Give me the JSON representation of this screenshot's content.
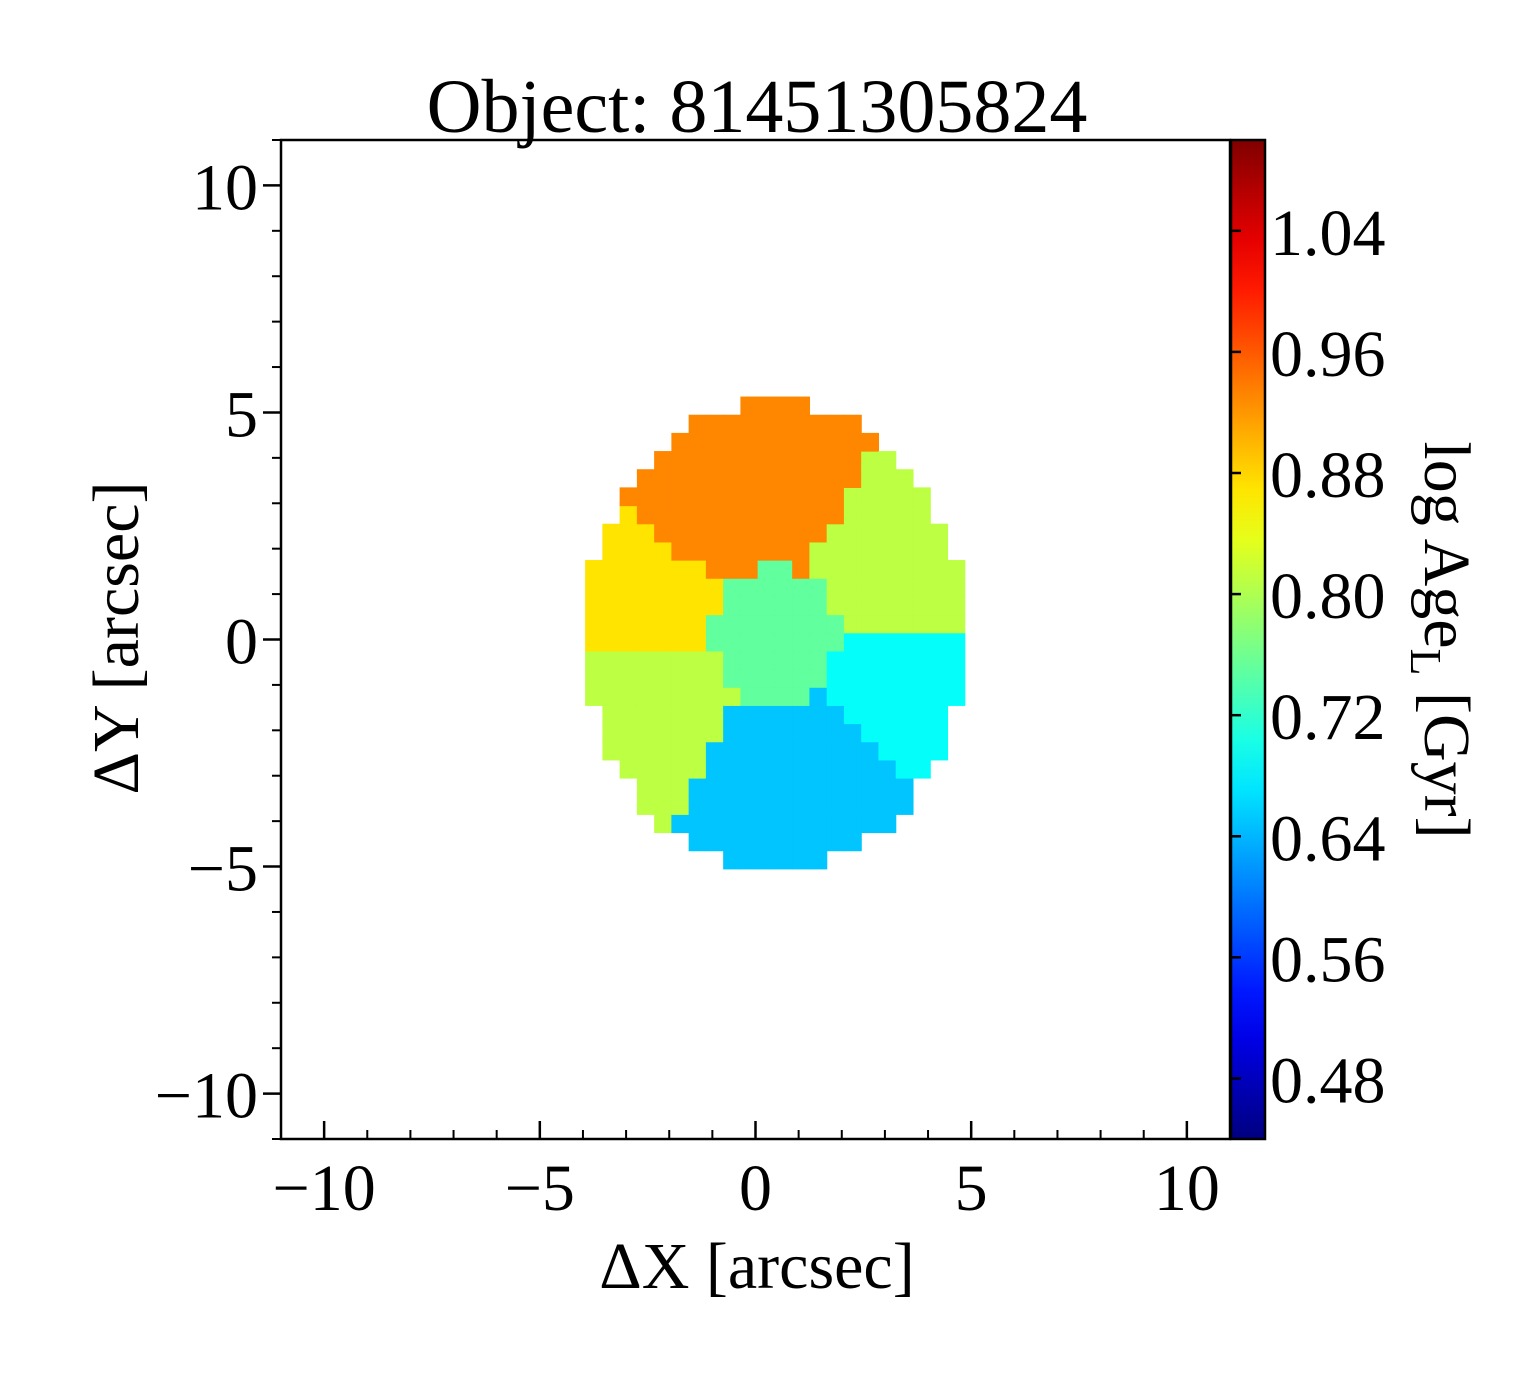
{
  "chart_data": {
    "type": "heatmap",
    "title": "Object: 81451305824",
    "xlabel": "ΔX [arcsec]",
    "ylabel": "ΔY [arcsec]",
    "colorbar_label_main": "log Age",
    "colorbar_label_sub": "L",
    "colorbar_label_unit": "[Gyr]",
    "xlim": [
      -11,
      11
    ],
    "ylim": [
      -11,
      11
    ],
    "x_ticks": [
      -10,
      -5,
      0,
      5,
      10
    ],
    "x_tick_labels": [
      "−10",
      "−5",
      "0",
      "5",
      "10"
    ],
    "y_ticks": [
      10,
      5,
      0,
      -5,
      -10
    ],
    "y_tick_labels": [
      "10",
      "5",
      "0",
      "−5",
      "−10"
    ],
    "colorbar_range": [
      0.44,
      1.1
    ],
    "colorbar_ticks": [
      1.04,
      0.96,
      0.88,
      0.8,
      0.72,
      0.64,
      0.56,
      0.48
    ],
    "colorbar_tick_labels": [
      "1.04",
      "0.96",
      "0.88",
      "0.80",
      "0.72",
      "0.64",
      "0.56",
      "0.48"
    ],
    "colormap": "jet",
    "grid": false,
    "map": {
      "center": [
        0.45,
        0.1
      ],
      "semi_axis_x": 4.4,
      "semi_axis_y": 5.15,
      "pixel_size": 0.4,
      "regions": [
        {
          "name": "north",
          "angle_start": 62,
          "angle_end": 140,
          "value": 0.93
        },
        {
          "name": "northwest",
          "angle_start": 140,
          "angle_end": 185,
          "value": 0.87
        },
        {
          "name": "southwest",
          "angle_start": 185,
          "angle_end": 240,
          "value": 0.81
        },
        {
          "name": "south",
          "angle_start": 240,
          "angle_end": 312,
          "value": 0.65
        },
        {
          "name": "southeast",
          "angle_start": 312,
          "angle_end": 362,
          "value": 0.69
        },
        {
          "name": "northeast",
          "angle_start": 2,
          "angle_end": 62,
          "value": 0.81
        }
      ],
      "core_value": 0.75,
      "core_radius": 1.5
    }
  }
}
